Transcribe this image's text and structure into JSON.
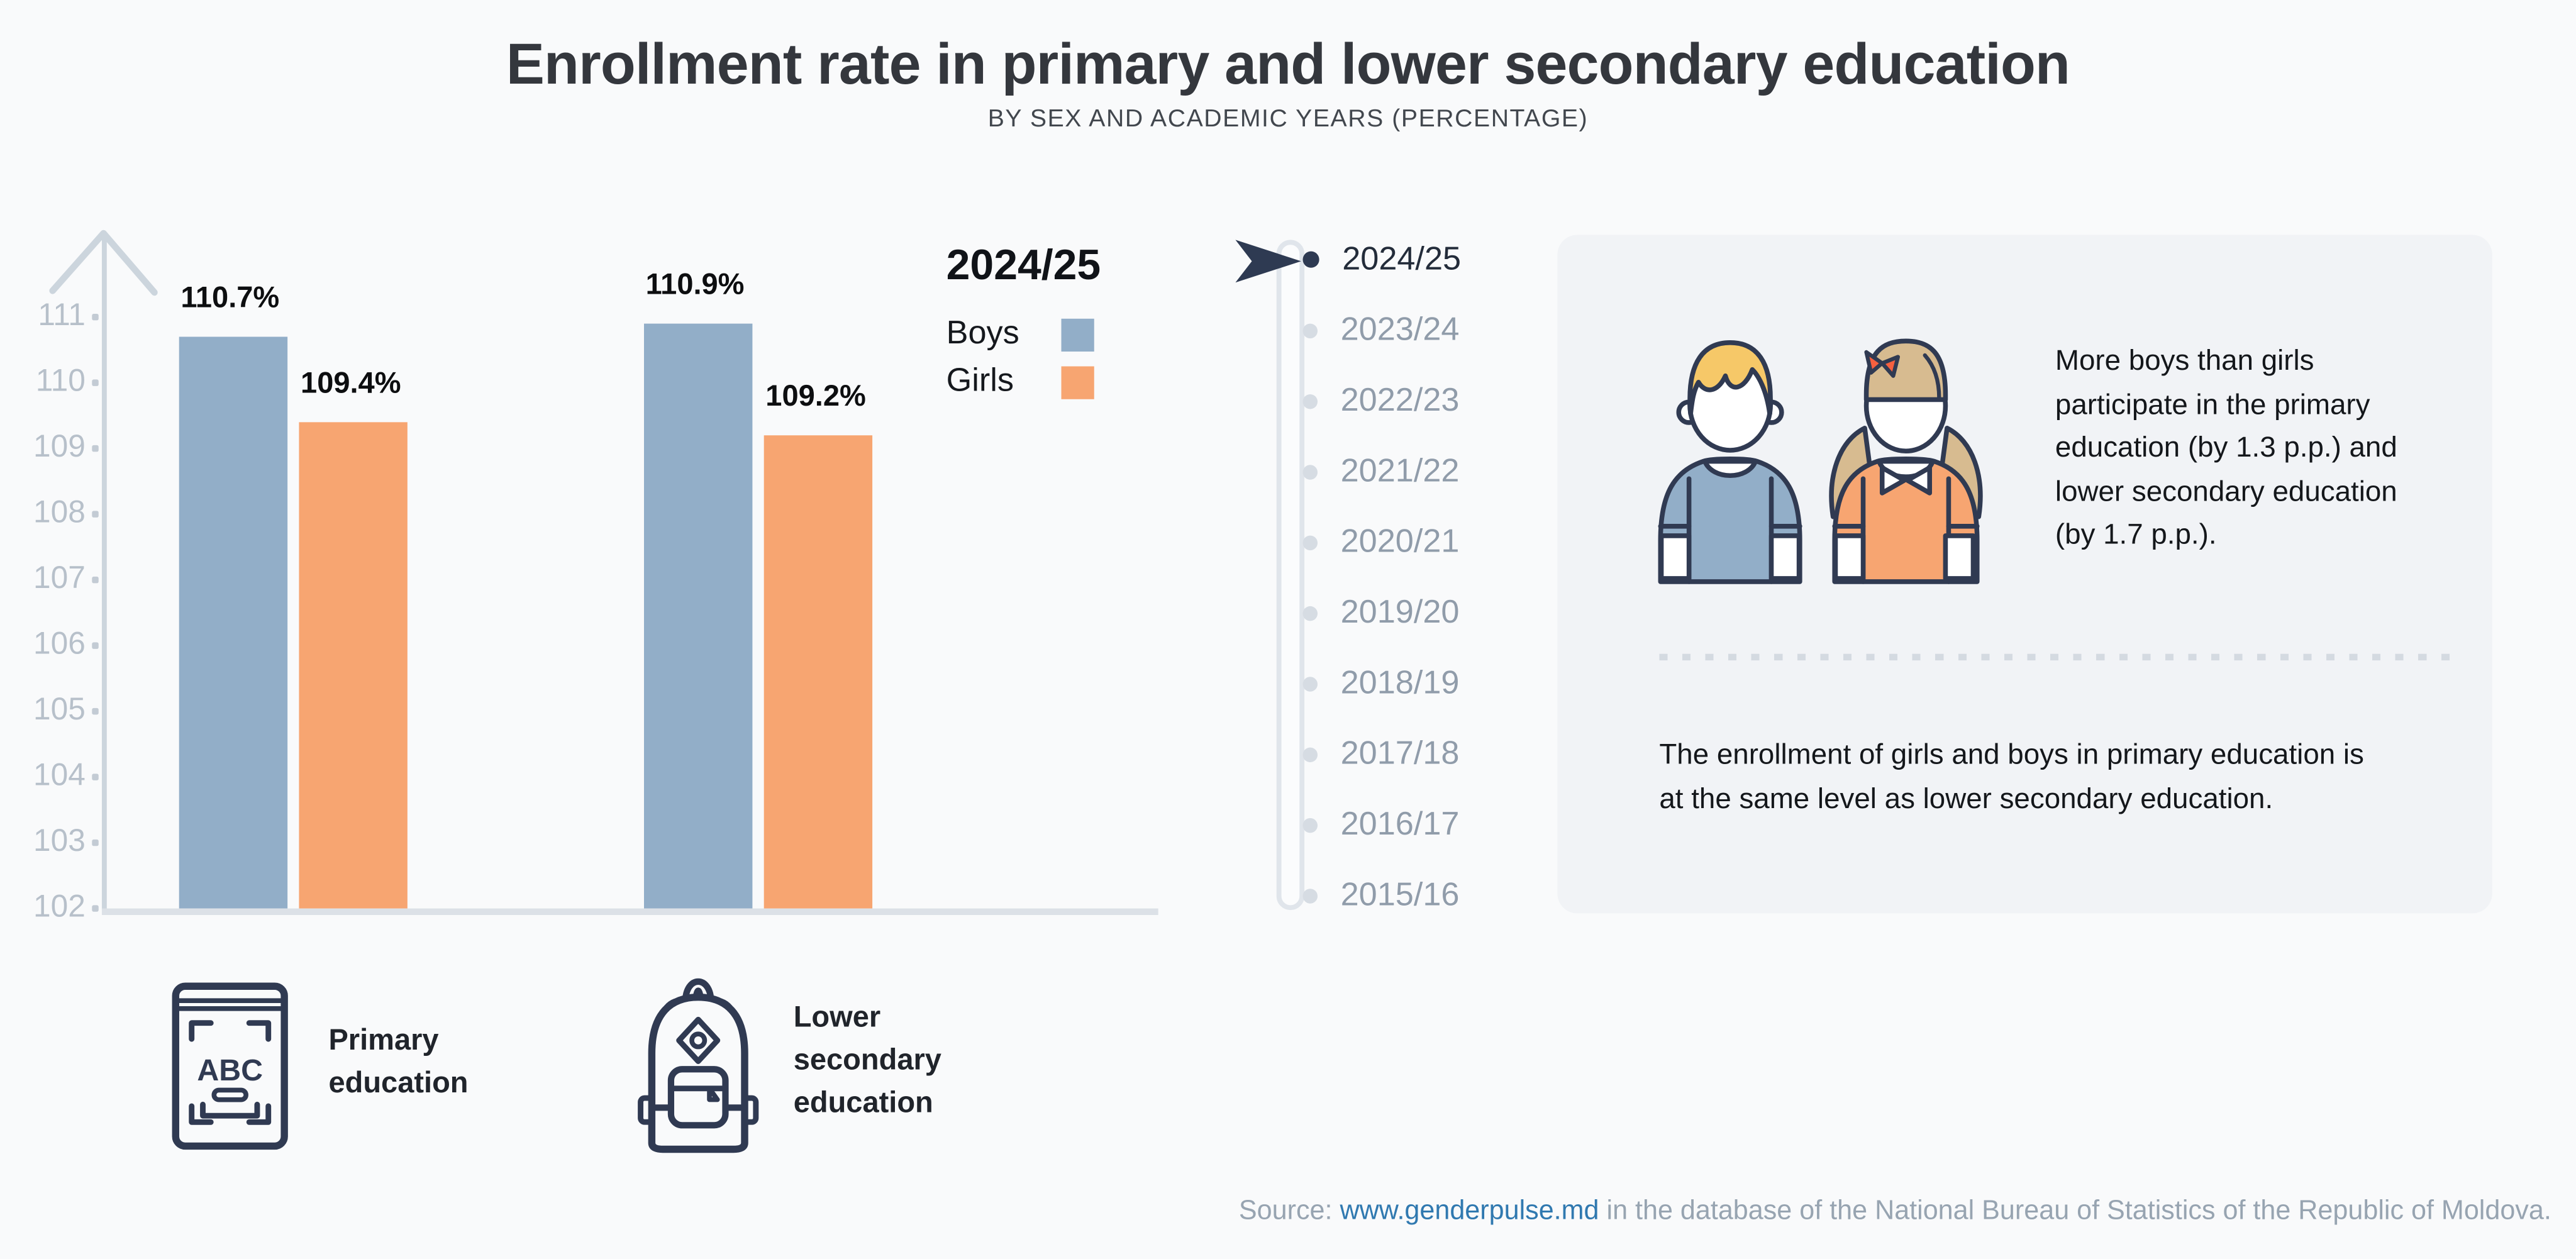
{
  "title": "Enrollment rate in primary and lower secondary education",
  "subtitle": "BY SEX AND ACADEMIC YEARS (PERCENTAGE)",
  "chart_data": {
    "type": "bar",
    "title": "Enrollment rate in primary and lower secondary education",
    "subtitle": "BY SEX AND ACADEMIC YEARS (PERCENTAGE)",
    "categories": [
      "Primary education",
      "Lower secondary education"
    ],
    "series": [
      {
        "name": "Boys",
        "color": "#92aec8",
        "values": [
          110.7,
          110.9
        ]
      },
      {
        "name": "Girls",
        "color": "#f7a571",
        "values": [
          109.4,
          109.2
        ]
      }
    ],
    "value_suffix": "%",
    "ylim": [
      102,
      111.5
    ],
    "yticks": [
      111,
      110,
      109,
      108,
      107,
      106,
      105,
      104,
      103,
      102
    ],
    "academic_year": "2024/25",
    "grid": false,
    "legend_position": "right-of-bars"
  },
  "legend": {
    "title": "2024/25",
    "items": [
      {
        "label": "Boys",
        "color": "#92aec8"
      },
      {
        "label": "Girls",
        "color": "#f7a571"
      }
    ]
  },
  "timeline": {
    "selected": "2024/25",
    "years": [
      "2024/25",
      "2023/24",
      "2022/23",
      "2021/22",
      "2020/21",
      "2019/20",
      "2018/19",
      "2017/18",
      "2016/17",
      "2015/16"
    ]
  },
  "insight_panel": {
    "paragraph1_lines": [
      "More boys than girls",
      "participate in the primary",
      "education (by 1.3 p.p.) and",
      "lower secondary education",
      "(by 1.7 p.p.)."
    ],
    "paragraph2_lines": [
      "The enrollment of girls and boys in primary education is",
      "at the same level as lower secondary education."
    ]
  },
  "categories": [
    {
      "icon": "abc-book-icon",
      "label_lines": [
        "Primary",
        "education"
      ]
    },
    {
      "icon": "backpack-icon",
      "label_lines": [
        "Lower",
        "secondary",
        "education"
      ]
    }
  ],
  "source": {
    "prefix": "Source: ",
    "link": "www.genderpulse.md",
    "suffix": " in the database of the National Bureau of Statistics of the Republic of Moldova."
  },
  "colors": {
    "boys": "#92aec8",
    "girls": "#f7a571",
    "accent_navy": "#2e3a52",
    "page_bg": "#f9fafb",
    "panel_bg": "#f1f3f6",
    "axis": "#ccd5dd",
    "link": "#3079b0",
    "boy_hair": "#f6c868",
    "girl_hair": "#d7bb90",
    "bow_red": "#f6603f"
  }
}
